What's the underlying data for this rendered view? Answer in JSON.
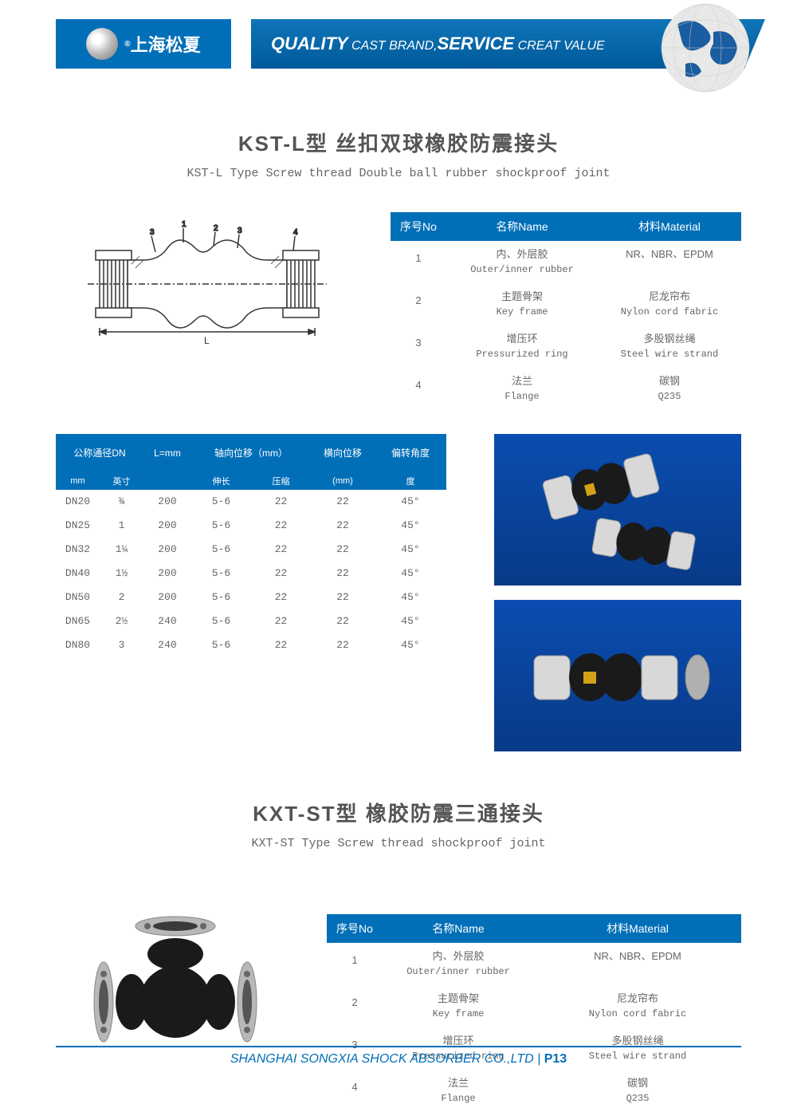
{
  "header": {
    "company_cn": "上海松夏",
    "tagline_parts": [
      "QUALITY",
      " CAST BRAND,",
      "SERVICE",
      " CREAT VALUE"
    ]
  },
  "product1": {
    "title": "KST-L型 丝扣双球橡胶防震接头",
    "subtitle": "KST-L Type Screw thread Double ball rubber shockproof joint",
    "material_headers": [
      "序号No",
      "名称Name",
      "材料Material"
    ],
    "materials": [
      {
        "no": "1",
        "name_cn": "内、外层胶",
        "name_en": "Outer/inner rubber",
        "mat_cn": "NR、NBR、EPDM",
        "mat_en": ""
      },
      {
        "no": "2",
        "name_cn": "主题骨架",
        "name_en": "Key frame",
        "mat_cn": "尼龙帘布",
        "mat_en": "Nylon cord fabric"
      },
      {
        "no": "3",
        "name_cn": "增压环",
        "name_en": "Pressurized ring",
        "mat_cn": "多股钢丝绳",
        "mat_en": "Steel wire strand"
      },
      {
        "no": "4",
        "name_cn": "法兰",
        "name_en": "Flange",
        "mat_cn": "碳钢",
        "mat_en": "Q235"
      }
    ],
    "spec_headers_top": [
      "公称通径DN",
      "L=mm",
      "轴向位移（mm）",
      "横向位移",
      "偏转角度"
    ],
    "spec_headers_sub": [
      "mm",
      "英寸",
      "",
      "伸长",
      "压缩",
      "(mm)",
      "度"
    ],
    "specs": [
      {
        "dn": "DN20",
        "inch": "¾",
        "l": "200",
        "ext": "5-6",
        "comp": "22",
        "lat": "22",
        "ang": "45°"
      },
      {
        "dn": "DN25",
        "inch": "1",
        "l": "200",
        "ext": "5-6",
        "comp": "22",
        "lat": "22",
        "ang": "45°"
      },
      {
        "dn": "DN32",
        "inch": "1¼",
        "l": "200",
        "ext": "5-6",
        "comp": "22",
        "lat": "22",
        "ang": "45°"
      },
      {
        "dn": "DN40",
        "inch": "1½",
        "l": "200",
        "ext": "5-6",
        "comp": "22",
        "lat": "22",
        "ang": "45°"
      },
      {
        "dn": "DN50",
        "inch": "2",
        "l": "200",
        "ext": "5-6",
        "comp": "22",
        "lat": "22",
        "ang": "45°"
      },
      {
        "dn": "DN65",
        "inch": "2½",
        "l": "240",
        "ext": "5-6",
        "comp": "22",
        "lat": "22",
        "ang": "45°"
      },
      {
        "dn": "DN80",
        "inch": "3",
        "l": "240",
        "ext": "5-6",
        "comp": "22",
        "lat": "22",
        "ang": "45°"
      }
    ],
    "diagram_label": "L"
  },
  "product2": {
    "title": "KXT-ST型 橡胶防震三通接头",
    "subtitle": "KXT-ST Type Screw thread shockproof joint",
    "material_headers": [
      "序号No",
      "名称Name",
      "材料Material"
    ],
    "materials": [
      {
        "no": "1",
        "name_cn": "内、外层胶",
        "name_en": "Outer/inner rubber",
        "mat_cn": "NR、NBR、EPDM",
        "mat_en": ""
      },
      {
        "no": "2",
        "name_cn": "主题骨架",
        "name_en": "Key frame",
        "mat_cn": "尼龙帘布",
        "mat_en": "Nylon cord fabric"
      },
      {
        "no": "3",
        "name_cn": "增压环",
        "name_en": "Pressurized ring",
        "mat_cn": "多股钢丝绳",
        "mat_en": "Steel wire strand"
      },
      {
        "no": "4",
        "name_cn": "法兰",
        "name_en": "Flange",
        "mat_cn": "碳钢",
        "mat_en": "Q235"
      }
    ]
  },
  "footer": {
    "company": "SHANGHAI SONGXIA SHOCK ABSORBER CO.,LTD",
    "page": "P13"
  },
  "colors": {
    "brand_blue": "#006fb8",
    "text_gray": "#666666"
  }
}
